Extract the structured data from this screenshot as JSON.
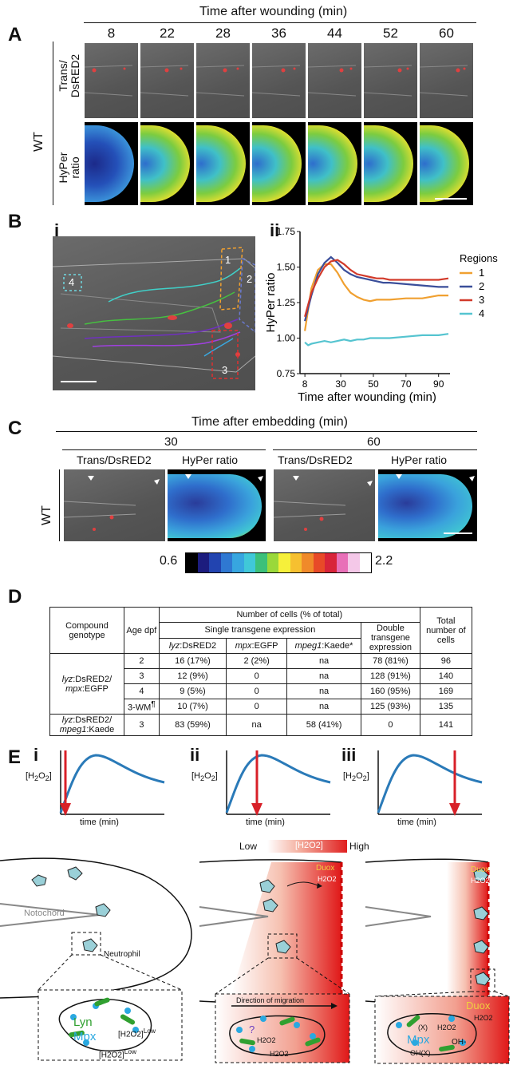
{
  "panel_A": {
    "label": "A",
    "time_header": "Time after wounding (min)",
    "times": [
      "8",
      "22",
      "28",
      "36",
      "44",
      "52",
      "60"
    ],
    "row_group": "WT",
    "row1": "Trans/\nDsRED2",
    "row2": "HyPer\nratio"
  },
  "panel_B": {
    "label": "B",
    "sub_i": "i",
    "sub_ii": "ii",
    "region_numbers": [
      "1",
      "2",
      "3",
      "4"
    ],
    "chart_data": {
      "type": "line",
      "xlabel": "Time after wounding (min)",
      "ylabel": "HyPer ratio",
      "xlim": [
        5,
        97
      ],
      "ylim": [
        0.75,
        1.75
      ],
      "xticks": [
        "8",
        "30",
        "50",
        "70",
        "90"
      ],
      "yticks": [
        "0.75",
        "1.00",
        "1.25",
        "1.50",
        "1.75"
      ],
      "legend_title": "Regions",
      "legend_placement": "right",
      "series": [
        {
          "name": "1",
          "color": "#f0a030",
          "x": [
            8,
            12,
            16,
            20,
            24,
            28,
            32,
            36,
            40,
            44,
            48,
            52,
            56,
            60,
            70,
            80,
            90,
            96
          ],
          "y": [
            1.05,
            1.35,
            1.48,
            1.52,
            1.52,
            1.46,
            1.38,
            1.32,
            1.29,
            1.27,
            1.26,
            1.27,
            1.27,
            1.27,
            1.28,
            1.28,
            1.3,
            1.3
          ]
        },
        {
          "name": "2",
          "color": "#3a4e9a",
          "x": [
            8,
            12,
            16,
            20,
            24,
            28,
            32,
            36,
            40,
            44,
            48,
            52,
            56,
            60,
            70,
            80,
            90,
            96
          ],
          "y": [
            1.12,
            1.3,
            1.45,
            1.53,
            1.57,
            1.53,
            1.48,
            1.45,
            1.43,
            1.42,
            1.41,
            1.4,
            1.39,
            1.39,
            1.38,
            1.37,
            1.36,
            1.36
          ]
        },
        {
          "name": "3",
          "color": "#d23a2a",
          "x": [
            8,
            12,
            16,
            20,
            24,
            28,
            32,
            36,
            40,
            44,
            48,
            52,
            56,
            60,
            70,
            80,
            90,
            96
          ],
          "y": [
            1.15,
            1.32,
            1.42,
            1.5,
            1.54,
            1.55,
            1.52,
            1.48,
            1.45,
            1.44,
            1.43,
            1.42,
            1.42,
            1.41,
            1.41,
            1.41,
            1.41,
            1.42
          ]
        },
        {
          "name": "4",
          "color": "#55c4d0",
          "x": [
            8,
            10,
            12,
            16,
            20,
            24,
            28,
            32,
            36,
            40,
            44,
            48,
            52,
            56,
            60,
            70,
            80,
            90,
            96
          ],
          "y": [
            0.97,
            0.95,
            0.96,
            0.97,
            0.98,
            0.97,
            0.98,
            0.99,
            0.98,
            0.99,
            0.99,
            1.0,
            1.0,
            1.0,
            1.0,
            1.01,
            1.02,
            1.02,
            1.03
          ]
        }
      ]
    }
  },
  "panel_C": {
    "label": "C",
    "time_header": "Time after embedding (min)",
    "times": [
      "30",
      "60"
    ],
    "col_trans": "Trans/DsRED2",
    "col_hyper": "HyPer ratio",
    "row_group": "WT",
    "scale_min": "0.6",
    "scale_max": "2.2",
    "scale_colors": [
      "#000000",
      "#1c1c7e",
      "#2244b0",
      "#2f78d2",
      "#37a6e0",
      "#40c8d8",
      "#3cc07a",
      "#9ad83a",
      "#f6f03a",
      "#f6c030",
      "#f08a2a",
      "#e84a28",
      "#d8243a",
      "#e870b8",
      "#f4c8e8",
      "#ffffff"
    ]
  },
  "panel_D": {
    "label": "D",
    "h_compound": "Compound genotype",
    "h_age": "Age dpf",
    "h_number": "Number of cells (% of total)",
    "h_single": "Single transgene expression",
    "h_lyz": "lyz",
    "h_lyz_b": ":DsRED2",
    "h_mpx": "mpx",
    "h_mpx_b": ":EGFP",
    "h_mpeg": "mpeg1",
    "h_mpeg_b": ":Kaede*",
    "h_double": "Double transgene expression",
    "h_total": "Total number of cells",
    "g1_a": "lyz",
    "g1_b": ":DsRED2/",
    "g1_c": "mpx",
    "g1_d": ":EGFP",
    "g2_a": "lyz",
    "g2_b": ":DsRED2/",
    "g2_c": "mpeg1",
    "g2_d": ":Kaede",
    "rows": [
      {
        "age": "2",
        "lyz": "16 (17%)",
        "mpx": "2 (2%)",
        "mpeg": "na",
        "double": "78 (81%)",
        "total": "96"
      },
      {
        "age": "3",
        "lyz": "12 (9%)",
        "mpx": "0",
        "mpeg": "na",
        "double": "128 (91%)",
        "total": "140"
      },
      {
        "age": "4",
        "lyz": "9 (5%)",
        "mpx": "0",
        "mpeg": "na",
        "double": "160 (95%)",
        "total": "169"
      },
      {
        "age": "3-WM",
        "age_sup": "¶",
        "lyz": "10 (7%)",
        "mpx": "0",
        "mpeg": "na",
        "double": "125 (93%)",
        "total": "135"
      },
      {
        "age": "3",
        "lyz": "83 (59%)",
        "mpx": "na",
        "mpeg": "58 (41%)",
        "double": "0",
        "total": "141"
      }
    ]
  },
  "panel_E": {
    "label": "E",
    "subs": [
      "i",
      "ii",
      "iii"
    ],
    "y_label": "[H",
    "y_sub": "2",
    "y_o": "O",
    "y_end": "]",
    "x_label": "time (min)",
    "grad_low": "Low",
    "grad_mid": "[H2O2]",
    "grad_high": "High",
    "notochord": "Notochord",
    "neutrophil": "Neutrophil",
    "duox": "Duox",
    "h2o2": "H2O2",
    "lyn": "Lyn",
    "mpx": "Mpx",
    "h2o2_low": "[H2O2]",
    "low_sup": "Low",
    "direction": "Direction of migration",
    "qmark": "?",
    "x_mark": "(X)",
    "oh": "OH-",
    "ohx": "OH(X)"
  }
}
